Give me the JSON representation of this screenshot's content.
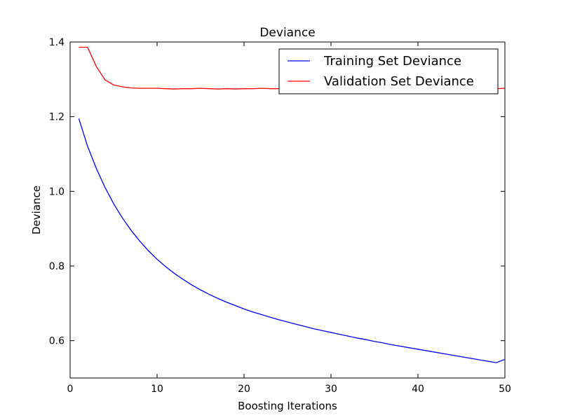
{
  "chart_data": {
    "type": "line",
    "title": "Deviance",
    "xlabel": "Boosting Iterations",
    "ylabel": "Deviance",
    "xlim": [
      0,
      50
    ],
    "ylim": [
      0.5,
      1.4
    ],
    "x_ticks": [
      "0",
      "10",
      "20",
      "30",
      "40",
      "50"
    ],
    "y_ticks": [
      "0.6",
      "0.8",
      "1.0",
      "1.2",
      "1.4"
    ],
    "grid": false,
    "legend_position": "upper-right",
    "x": [
      1,
      2,
      3,
      4,
      5,
      6,
      7,
      8,
      9,
      10,
      11,
      12,
      13,
      14,
      15,
      16,
      17,
      18,
      19,
      20,
      21,
      22,
      23,
      24,
      25,
      26,
      27,
      28,
      29,
      30,
      31,
      32,
      33,
      34,
      35,
      36,
      37,
      38,
      39,
      40,
      41,
      42,
      43,
      44,
      45,
      46,
      47,
      48,
      49,
      50
    ],
    "series": [
      {
        "name": "Training Set Deviance",
        "color": "#0000ff",
        "values": [
          1.195,
          1.121,
          1.062,
          1.011,
          0.967,
          0.929,
          0.896,
          0.867,
          0.841,
          0.818,
          0.798,
          0.78,
          0.764,
          0.749,
          0.736,
          0.724,
          0.713,
          0.703,
          0.694,
          0.685,
          0.677,
          0.67,
          0.663,
          0.656,
          0.65,
          0.644,
          0.638,
          0.632,
          0.627,
          0.622,
          0.617,
          0.612,
          0.607,
          0.603,
          0.598,
          0.594,
          0.589,
          0.585,
          0.581,
          0.577,
          0.573,
          0.569,
          0.565,
          0.561,
          0.557,
          0.553,
          0.549,
          0.545,
          0.541,
          0.55
        ]
      },
      {
        "name": "Validation Set Deviance",
        "color": "#ff0000",
        "values": [
          1.386,
          1.386,
          1.335,
          1.299,
          1.285,
          1.28,
          1.277,
          1.276,
          1.276,
          1.276,
          1.275,
          1.274,
          1.275,
          1.275,
          1.276,
          1.275,
          1.274,
          1.275,
          1.274,
          1.275,
          1.275,
          1.276,
          1.275,
          1.275,
          1.275,
          1.275,
          1.275,
          1.275,
          1.275,
          1.275,
          1.275,
          1.275,
          1.275,
          1.275,
          1.275,
          1.275,
          1.275,
          1.275,
          1.275,
          1.275,
          1.275,
          1.275,
          1.275,
          1.275,
          1.275,
          1.275,
          1.275,
          1.275,
          1.275,
          1.276
        ]
      }
    ]
  }
}
